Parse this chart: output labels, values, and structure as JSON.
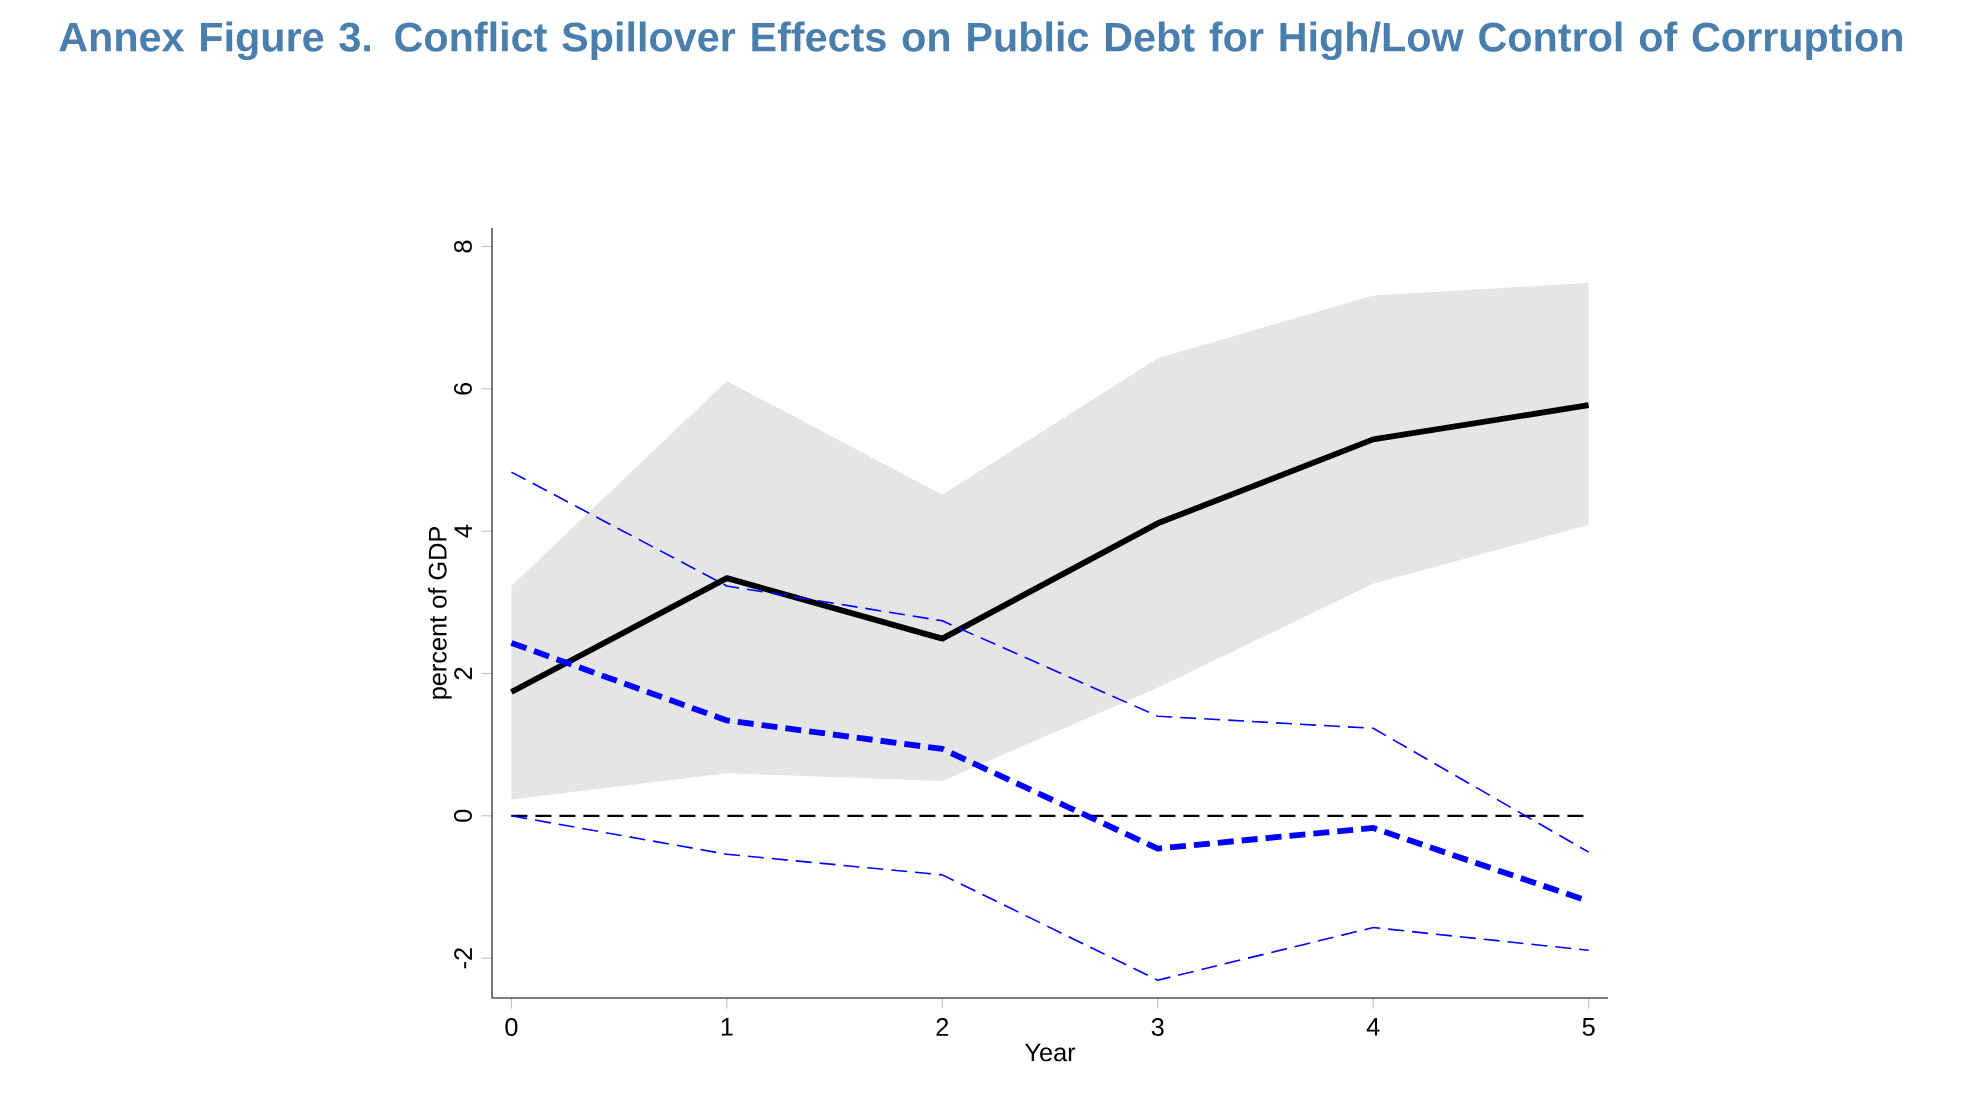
{
  "chart_data": {
    "type": "line",
    "title": "Annex Figure 3. Conflict Spillover Effects on Public Debt for High/Low Control of Corruption",
    "xlabel": "Year",
    "ylabel": "percent of GDP",
    "x": [
      0,
      1,
      2,
      3,
      4,
      5
    ],
    "series": [
      {
        "color": "#000000",
        "line_style": "solid",
        "values": [
          1.74,
          3.34,
          2.49,
          4.11,
          5.29,
          5.77
        ],
        "lower": [
          0.23,
          0.6,
          0.49,
          1.8,
          3.26,
          4.09
        ],
        "upper": [
          3.23,
          6.11,
          4.51,
          6.43,
          7.31,
          7.49
        ]
      },
      {
        "color": "#0000ff",
        "line_style": "dashed",
        "values": [
          2.43,
          1.34,
          0.94,
          -0.46,
          -0.17,
          -1.2
        ]
      },
      {
        "type": "line",
        "color": "#0000ff",
        "line_style": "dashed",
        "values": [
          4.83,
          3.23,
          2.74,
          1.4,
          1.23,
          -0.51
        ]
      },
      {
        "type": "line",
        "color": "#0000ff",
        "line_style": "dashed",
        "values": [
          0,
          -0.54,
          -0.83,
          -2.31,
          -1.57,
          -1.89
        ]
      }
    ],
    "xlim": [
      -0.09,
      5.09
    ],
    "ylim": [
      -2.56,
      8.26
    ],
    "xticks": [
      0,
      1,
      2,
      3,
      4,
      5
    ],
    "yticks": [
      -2,
      0,
      2,
      4,
      6,
      8
    ],
    "ref_lines": [
      {
        "axis": "y",
        "value": 0,
        "color": "#000000",
        "line_style": "dashed"
      }
    ],
    "grid": false
  }
}
